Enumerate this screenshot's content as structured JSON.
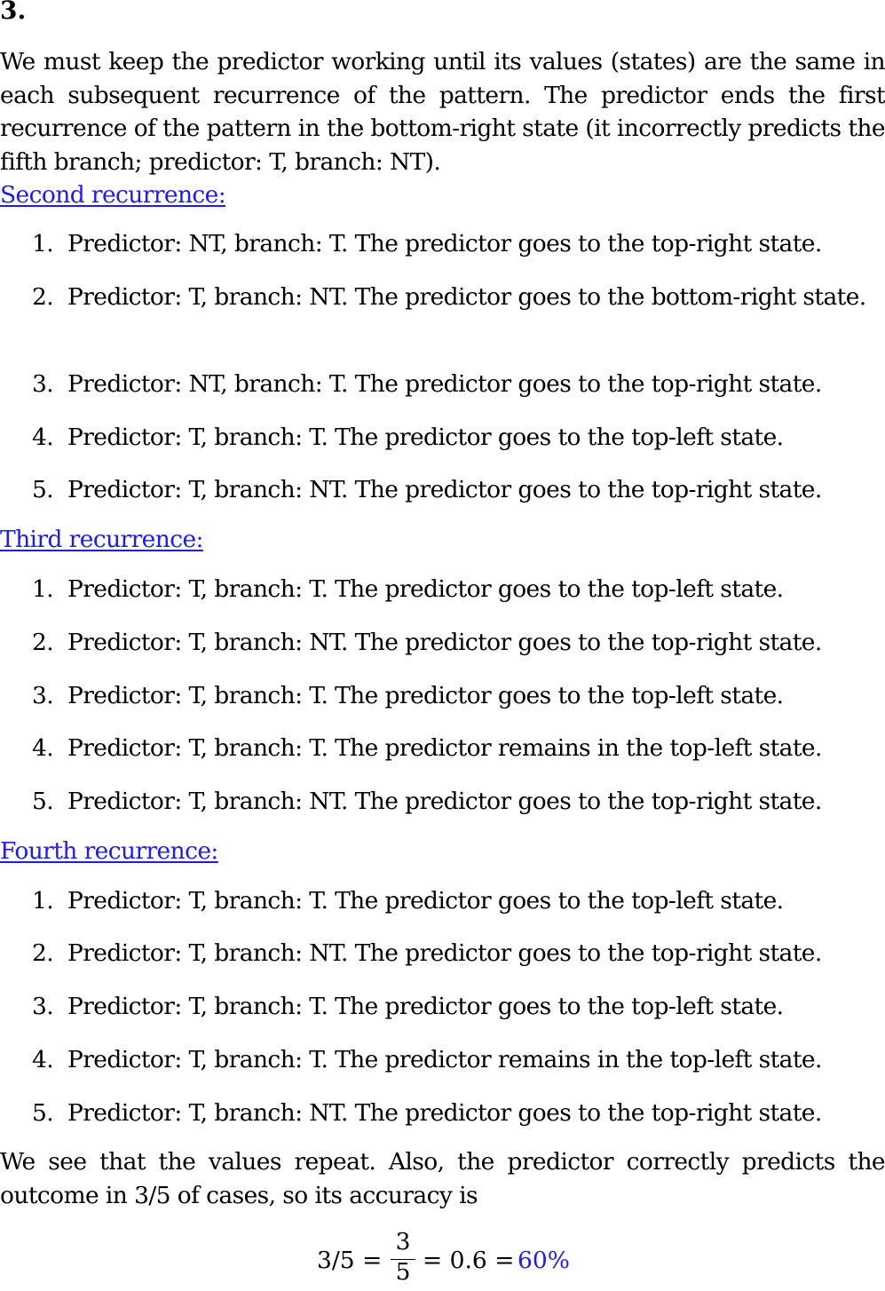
{
  "heading": "3.",
  "intro": "We must keep the predictor working until its values (states) are the same in each subsequent recurrence of the pattern.  The predictor ends the first recurrence of the pattern in the bottom-right state (it incorrectly predicts the fifth branch; predictor:  T, branch:  NT).",
  "sections": [
    {
      "title": "Second recurrence:",
      "steps": [
        {
          "num": "1.",
          "text": "Predictor:  NT, branch:  T. The predictor goes to the top-right state."
        },
        {
          "num": "2.",
          "text": "Predictor:  T, branch:  NT. The predictor goes to the bottom-right state."
        },
        {
          "num": "3.",
          "text": "Predictor:  NT, branch:  T. The predictor goes to the top-right state."
        },
        {
          "num": "4.",
          "text": "Predictor:  T, branch:  T. The predictor goes to the top-left state."
        },
        {
          "num": "5.",
          "text": "Predictor:  T, branch:  NT. The predictor goes to the top-right state."
        }
      ]
    },
    {
      "title": "Third recurrence:",
      "steps": [
        {
          "num": "1.",
          "text": "Predictor:  T, branch:  T. The predictor goes to the top-left state."
        },
        {
          "num": "2.",
          "text": "Predictor:  T, branch:  NT. The predictor goes to the top-right state."
        },
        {
          "num": "3.",
          "text": "Predictor:  T, branch:  T. The predictor goes to the top-left state."
        },
        {
          "num": "4.",
          "text": "Predictor:  T, branch:  T. The predictor remains in the top-left state."
        },
        {
          "num": "5.",
          "text": "Predictor:  T, branch:  NT. The predictor goes to the top-right state."
        }
      ]
    },
    {
      "title": "Fourth recurrence:",
      "steps": [
        {
          "num": "1.",
          "text": "Predictor:  T, branch:  T. The predictor goes to the top-left state."
        },
        {
          "num": "2.",
          "text": "Predictor:  T, branch:  NT. The predictor goes to the top-right state."
        },
        {
          "num": "3.",
          "text": "Predictor:  T, branch:  T. The predictor goes to the top-left state."
        },
        {
          "num": "4.",
          "text": "Predictor:  T, branch:  T. The predictor remains in the top-left state."
        },
        {
          "num": "5.",
          "text": "Predictor:  T, branch:  NT. The predictor goes to the top-right state."
        }
      ]
    }
  ],
  "conclusion": "We see that the values repeat.  Also, the predictor correctly predicts the outcome in 3/5 of cases, so its accuracy is",
  "formula": {
    "lhs": "3/5 =",
    "frac_num": "3",
    "frac_den": "5",
    "mid": "= 0.6 =",
    "result": "60%"
  },
  "colors": {
    "link": "#1a1aff",
    "text": "#000000"
  }
}
